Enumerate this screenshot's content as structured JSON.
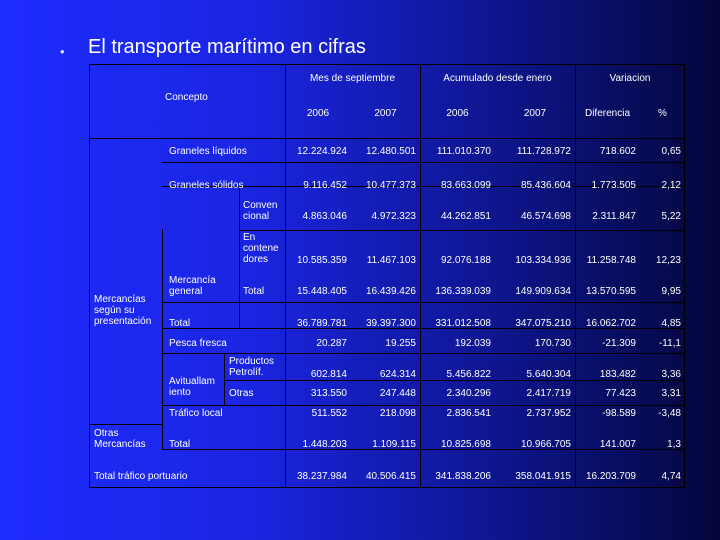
{
  "slide": {
    "bullet": "•",
    "title": "El transporte marítimo en cifras"
  },
  "table": {
    "headers": {
      "concepto": "Concepto",
      "mes": "Mes de septiembre",
      "acumulado": "Acumulado desde enero",
      "variacion": "Variacion",
      "y2006a": "2006",
      "y2007a": "2007",
      "y2006b": "2006",
      "y2007b": "2007",
      "diferencia": "Diferencia",
      "pct": "%"
    },
    "groups": {
      "mercancias": "Mercancías según su presentación",
      "mercancia_general": "Mercancía general",
      "avituallamiento": "Avituallam iento",
      "otras_mercancias": "Otras Mercancías"
    },
    "rows": [
      {
        "label": "Graneles líquidos",
        "values": [
          "12.224.924",
          "12.480.501",
          "111.010.370",
          "111.728.972",
          "718.602",
          "0,65"
        ]
      },
      {
        "label": "Graneles sólidos",
        "values": [
          "9.116.452",
          "10.477.373",
          "83.663.099",
          "85.436.604",
          "1.773.505",
          "2,12"
        ]
      },
      {
        "label": "Conven cional",
        "values": [
          "4.863.046",
          "4.972.323",
          "44.262.851",
          "46.574.698",
          "2.311.847",
          "5,22"
        ]
      },
      {
        "label": "En contene dores",
        "values": [
          "10.585.359",
          "11.467.103",
          "92.076.188",
          "103.334.936",
          "11.258.748",
          "12,23"
        ]
      },
      {
        "label": "Total",
        "values": [
          "15.448.405",
          "16.439.426",
          "136.339.039",
          "149.909.634",
          "13.570.595",
          "9,95"
        ]
      },
      {
        "label": "Total",
        "values": [
          "36.789.781",
          "39.397.300",
          "331.012.508",
          "347.075.210",
          "16.062.702",
          "4,85"
        ]
      },
      {
        "label": "Pesca fresca",
        "values": [
          "20.287",
          "19.255",
          "192.039",
          "170.730",
          "-21.309",
          "-11,1"
        ]
      },
      {
        "label": "Productos Petrolíf.",
        "values": [
          "602.814",
          "624.314",
          "5.456.822",
          "5.640.304",
          "183.482",
          "3,36"
        ]
      },
      {
        "label": "Otras",
        "values": [
          "313.550",
          "247.448",
          "2.340.296",
          "2.417.719",
          "77.423",
          "3,31"
        ]
      },
      {
        "label": "Tráfico local",
        "values": [
          "511.552",
          "218.098",
          "2.836.541",
          "2.737.952",
          "-98.589",
          "-3,48"
        ]
      },
      {
        "label": "Total",
        "values": [
          "1.448.203",
          "1.109.115",
          "10.825.698",
          "10.966.705",
          "141.007",
          "1,3"
        ]
      },
      {
        "label": "Total tráfico portuario",
        "values": [
          "38.237.984",
          "40.506.415",
          "341.838.206",
          "358.041.915",
          "16.203.709",
          "4,74"
        ]
      }
    ]
  }
}
